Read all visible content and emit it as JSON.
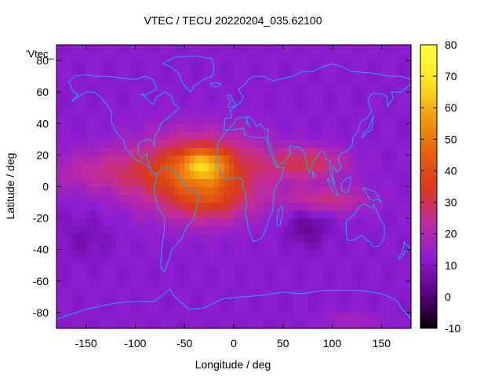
{
  "chart_data": {
    "type": "heatmap",
    "title": "VTEC / TECU 20220204_035.62100",
    "xlabel": "Longitude / deg",
    "ylabel": "Latitude / deg",
    "key_label": "'Vtec_",
    "xlim": [
      -180,
      180
    ],
    "ylim": [
      -90,
      90
    ],
    "x_ticks": [
      -150,
      -100,
      -50,
      0,
      50,
      100,
      150
    ],
    "y_ticks": [
      -80,
      -60,
      -40,
      -20,
      0,
      20,
      40,
      60,
      80
    ],
    "colorbar": {
      "range": [
        -10,
        80
      ],
      "ticks": [
        -10,
        0,
        10,
        20,
        30,
        40,
        50,
        60,
        70,
        80
      ],
      "palette": "black-purple-red-orange-yellow",
      "stops": [
        "#000000",
        "#5a0082",
        "#8c1ed2",
        "#c02c9a",
        "#d93a1a",
        "#e8640e",
        "#f0a010",
        "#ffe820",
        "#ffff40"
      ]
    },
    "grid": {
      "lon_step": 5,
      "lat_step": 5,
      "background_tecu": 12,
      "features": [
        {
          "name": "equatorial-anomaly-americas-africa",
          "lon": -35,
          "lat": 8,
          "sigma_lon": 45,
          "sigma_lat": 17,
          "amplitude": 31
        },
        {
          "name": "anomaly-peak",
          "lon": -30,
          "lat": 14,
          "sigma_lon": 16,
          "sigma_lat": 7,
          "amplitude": 24
        },
        {
          "name": "southern-crest-south-america",
          "lon": -25,
          "lat": -10,
          "sigma_lon": 25,
          "sigma_lat": 9,
          "amplitude": 10
        },
        {
          "name": "arabian-sea-tongue",
          "lon": 75,
          "lat": 15,
          "sigma_lon": 28,
          "sigma_lat": 7,
          "amplitude": 18
        },
        {
          "name": "indian-ocean-band",
          "lon": 95,
          "lat": -8,
          "sigma_lon": 30,
          "sigma_lat": 6,
          "amplitude": 14
        },
        {
          "name": "pacific-band",
          "lon": -130,
          "lat": 10,
          "sigma_lon": 50,
          "sigma_lat": 10,
          "amplitude": 10
        },
        {
          "name": "south-indian-low",
          "lon": 75,
          "lat": -25,
          "sigma_lon": 15,
          "sigma_lat": 9,
          "amplitude": -8
        },
        {
          "name": "south-pacific-low",
          "lon": -150,
          "lat": -32,
          "sigma_lon": 18,
          "sigma_lat": 10,
          "amplitude": -4
        },
        {
          "name": "antarctic-patch",
          "lon": 120,
          "lat": -85,
          "sigma_lon": 20,
          "sigma_lat": 4,
          "amplitude": 6
        }
      ]
    }
  }
}
